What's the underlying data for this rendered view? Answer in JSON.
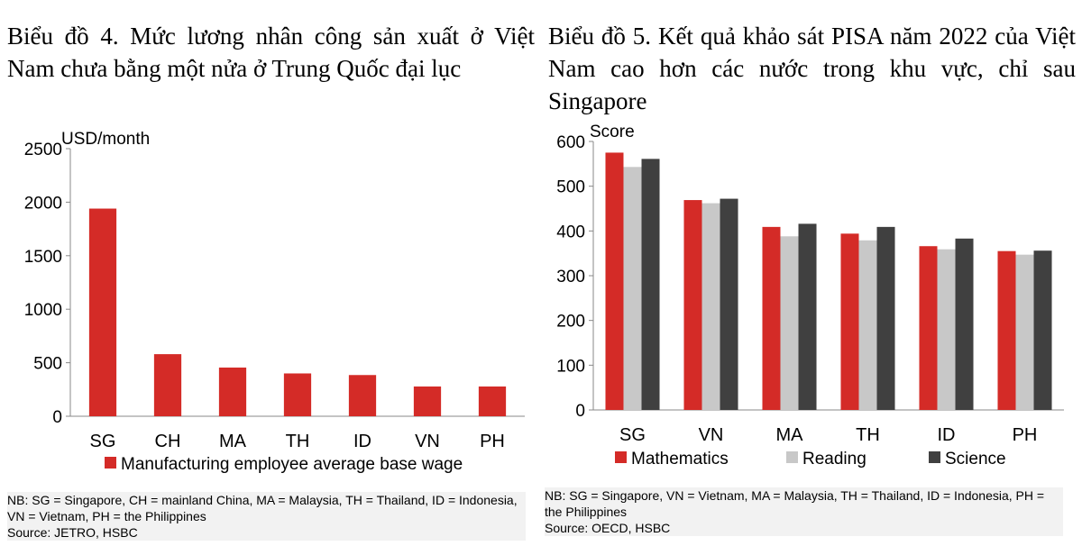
{
  "chart_data": [
    {
      "type": "bar",
      "title": "Biểu đồ 4. Mức lương nhân công sản xuất ở Việt Nam chưa bằng một nửa ở Trung Quốc đại lục",
      "ylabel": "USD/month",
      "xlabel": "",
      "ylim": [
        0,
        2500
      ],
      "yticks": [
        0,
        500,
        1000,
        1500,
        2000,
        2500
      ],
      "categories": [
        "SG",
        "CH",
        "MA",
        "TH",
        "ID",
        "VN",
        "PH"
      ],
      "series": [
        {
          "name": "Manufacturing employee average base wage",
          "color": "#d42b27",
          "values": [
            1940,
            580,
            455,
            400,
            385,
            278,
            278
          ]
        }
      ],
      "legend": "bottom",
      "grid": false,
      "notes": [
        "NB: SG = Singapore, CH = mainland China, MA = Malaysia, TH = Thailand, ID = Indonesia, VN = Vietnam, PH = the Philippines",
        "Source: JETRO, HSBC"
      ]
    },
    {
      "type": "bar",
      "title": "Biểu đồ 5. Kết quả khảo sát PISA năm 2022 của Việt Nam cao hơn các nước trong khu vực, chỉ sau Singapore",
      "ylabel": "Score",
      "xlabel": "",
      "ylim": [
        0,
        600
      ],
      "yticks": [
        0,
        100,
        200,
        300,
        400,
        500,
        600
      ],
      "categories": [
        "SG",
        "VN",
        "MA",
        "TH",
        "ID",
        "PH"
      ],
      "series": [
        {
          "name": "Mathematics",
          "color": "#d42b27",
          "values": [
            575,
            469,
            409,
            394,
            366,
            355
          ]
        },
        {
          "name": "Reading",
          "color": "#c8c8c8",
          "values": [
            543,
            462,
            388,
            379,
            359,
            347
          ]
        },
        {
          "name": "Science",
          "color": "#404040",
          "values": [
            561,
            472,
            416,
            409,
            383,
            356
          ]
        }
      ],
      "legend": "bottom",
      "grid": false,
      "notes": [
        "NB: SG = Singapore, VN = Vietnam, MA = Malaysia, TH = Thailand, ID = Indonesia, PH = the Philippines",
        "Source: OECD, HSBC"
      ]
    }
  ]
}
